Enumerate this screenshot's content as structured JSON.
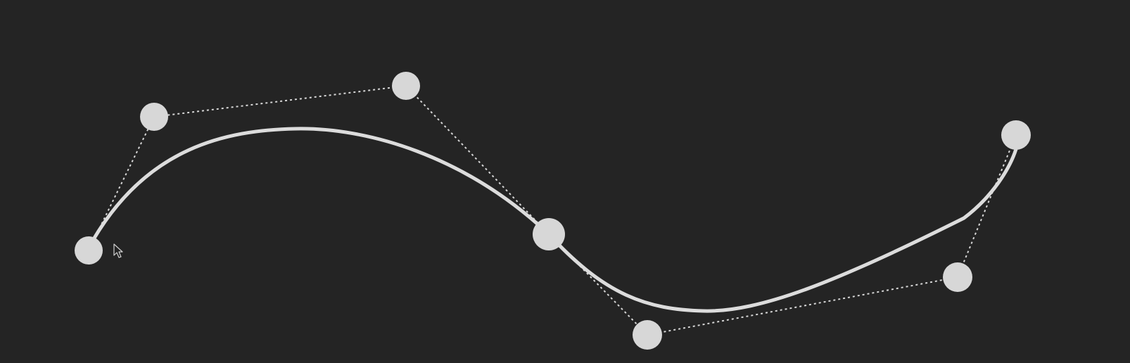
{
  "colors": {
    "background": "#242424",
    "curve": "#dcdcdc",
    "handle": "#d7d7d7",
    "guide": "#d6d6d6"
  },
  "icons": {
    "cursor": "arrow-pointer-icon"
  }
}
